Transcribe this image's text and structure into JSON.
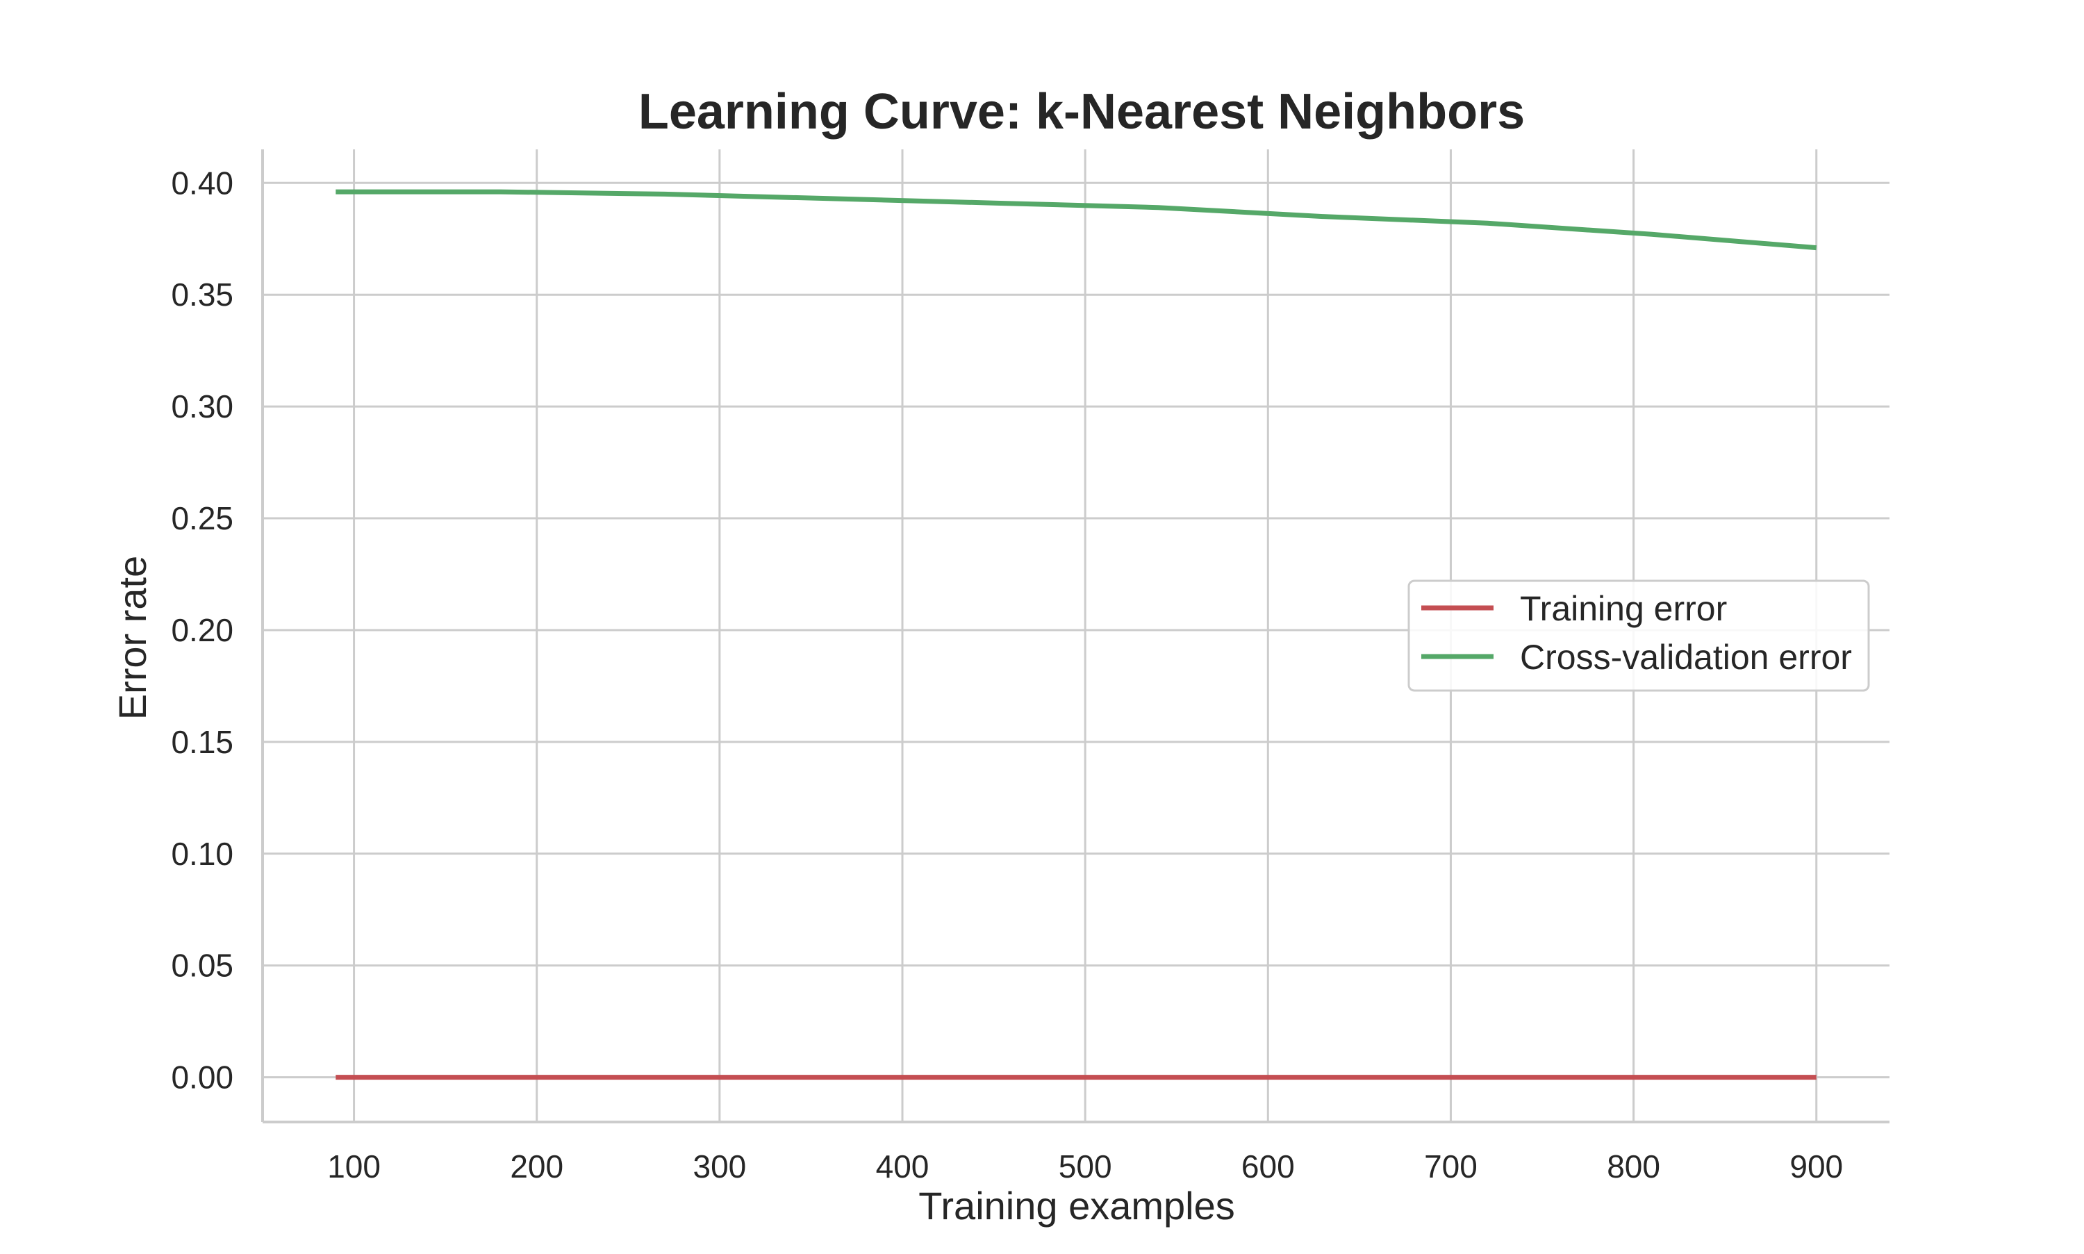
{
  "chart_data": {
    "type": "line",
    "title": "Learning Curve: k-Nearest Neighbors",
    "xlabel": "Training examples",
    "ylabel": "Error rate",
    "xlim": [
      50,
      940
    ],
    "ylim": [
      -0.02,
      0.415
    ],
    "x_ticks": [
      100,
      200,
      300,
      400,
      500,
      600,
      700,
      800,
      900
    ],
    "x_tick_labels": [
      "100",
      "200",
      "300",
      "400",
      "500",
      "600",
      "700",
      "800",
      "900"
    ],
    "y_ticks": [
      0.0,
      0.05,
      0.1,
      0.15,
      0.2,
      0.25,
      0.3,
      0.35,
      0.4
    ],
    "y_tick_labels": [
      "0.00",
      "0.05",
      "0.10",
      "0.15",
      "0.20",
      "0.25",
      "0.30",
      "0.35",
      "0.40"
    ],
    "grid": true,
    "legend_position": "center-right",
    "x": [
      90,
      180,
      270,
      360,
      450,
      540,
      630,
      720,
      810,
      900
    ],
    "series": [
      {
        "name": "Training error",
        "color": "#c44e52",
        "values": [
          0.0,
          0.0,
          0.0,
          0.0,
          0.0,
          0.0,
          0.0,
          0.0,
          0.0,
          0.0
        ]
      },
      {
        "name": "Cross-validation error",
        "color": "#55a868",
        "values": [
          0.396,
          0.396,
          0.395,
          0.393,
          0.391,
          0.389,
          0.385,
          0.382,
          0.377,
          0.371
        ]
      }
    ]
  }
}
